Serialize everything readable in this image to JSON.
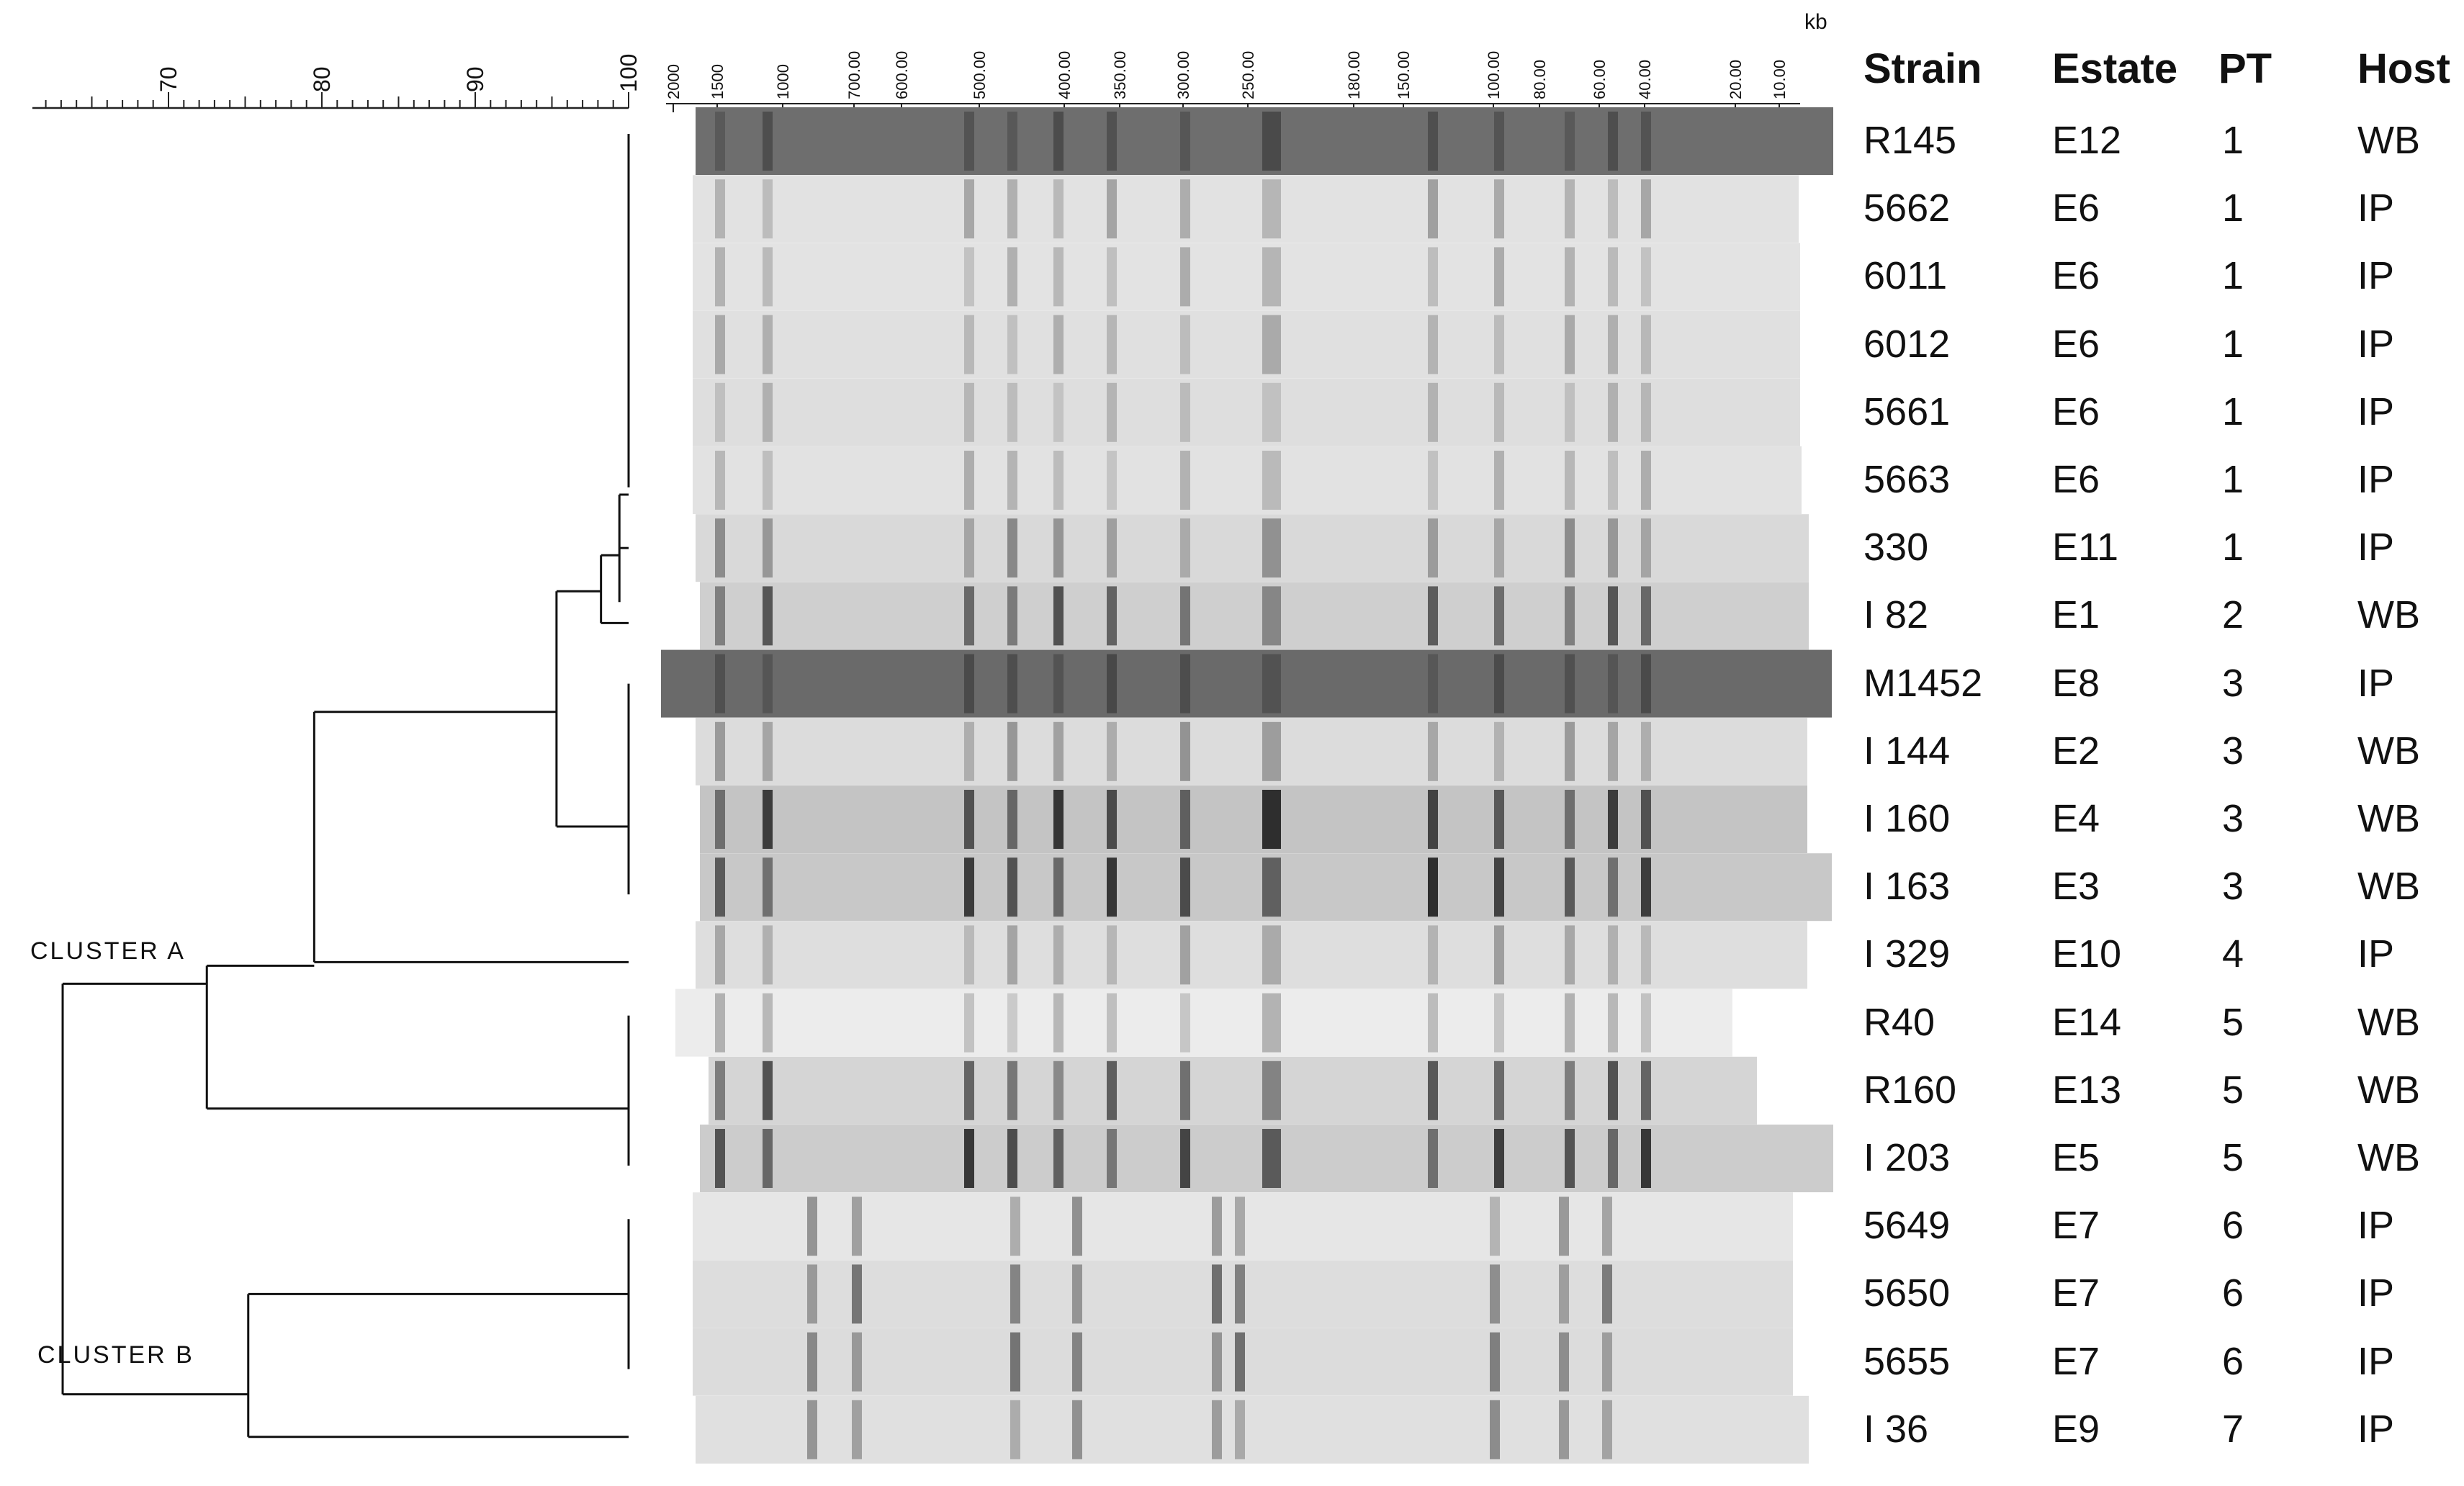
{
  "scale": {
    "ticks": [
      "70",
      "80",
      "90",
      "100"
    ],
    "tick_values": [
      70,
      80,
      90,
      100
    ]
  },
  "markers": {
    "unit": "kb",
    "labels": [
      "2000",
      "1500",
      "1000",
      "700.00",
      "600.00",
      "500.00",
      "400.00",
      "350.00",
      "300.00",
      "250.00",
      "180.00",
      "150.00",
      "100.00",
      "80.00",
      "60.00",
      "40.00",
      "20.00",
      "10.00"
    ]
  },
  "table": {
    "headers": {
      "strain": "Strain",
      "estate": "Estate",
      "pt": "PT",
      "host": "Host"
    },
    "rows": [
      {
        "strain": "R145",
        "estate": "E12",
        "pt": "1",
        "host": "WB"
      },
      {
        "strain": "5662",
        "estate": "E6",
        "pt": "1",
        "host": "IP"
      },
      {
        "strain": "6011",
        "estate": "E6",
        "pt": "1",
        "host": "IP"
      },
      {
        "strain": "6012",
        "estate": "E6",
        "pt": "1",
        "host": "IP"
      },
      {
        "strain": "5661",
        "estate": "E6",
        "pt": "1",
        "host": "IP"
      },
      {
        "strain": "5663",
        "estate": "E6",
        "pt": "1",
        "host": "IP"
      },
      {
        "strain": "330",
        "estate": "E11",
        "pt": "1",
        "host": "IP"
      },
      {
        "strain": "I 82",
        "estate": "E1",
        "pt": "2",
        "host": "WB"
      },
      {
        "strain": "M1452",
        "estate": "E8",
        "pt": "3",
        "host": "IP"
      },
      {
        "strain": "I 144",
        "estate": "E2",
        "pt": "3",
        "host": "WB"
      },
      {
        "strain": "I 160",
        "estate": "E4",
        "pt": "3",
        "host": "WB"
      },
      {
        "strain": "I 163",
        "estate": "E3",
        "pt": "3",
        "host": "WB"
      },
      {
        "strain": "I 329",
        "estate": "E10",
        "pt": "4",
        "host": "IP"
      },
      {
        "strain": "R40",
        "estate": "E14",
        "pt": "5",
        "host": "WB"
      },
      {
        "strain": "R160",
        "estate": "E13",
        "pt": "5",
        "host": "WB"
      },
      {
        "strain": "I 203",
        "estate": "E5",
        "pt": "5",
        "host": "WB"
      },
      {
        "strain": "5649",
        "estate": "E7",
        "pt": "6",
        "host": "IP"
      },
      {
        "strain": "5650",
        "estate": "E7",
        "pt": "6",
        "host": "IP"
      },
      {
        "strain": "5655",
        "estate": "E7",
        "pt": "6",
        "host": "IP"
      },
      {
        "strain": "I 36",
        "estate": "E9",
        "pt": "7",
        "host": "IP"
      }
    ]
  },
  "clusters": [
    {
      "label": "CLUSTER A",
      "similarity": 63
    },
    {
      "label": "CLUSTER B",
      "similarity": 63
    }
  ],
  "dendrogram_nodes": [
    {
      "similarity": 100,
      "rows": [
        0,
        1,
        2,
        3,
        4,
        5
      ]
    },
    {
      "similarity": 100,
      "rows": [
        8,
        9,
        10,
        11
      ]
    },
    {
      "similarity": 100,
      "rows": [
        13,
        14,
        15
      ]
    },
    {
      "similarity": 100,
      "rows": [
        16,
        17,
        18
      ]
    },
    {
      "similarity": 99,
      "children": [
        "100:0-5",
        "row:6"
      ]
    },
    {
      "similarity": 97,
      "children": [
        "99",
        "row:7"
      ]
    },
    {
      "similarity": 96,
      "children": [
        "97",
        "100:8-11"
      ]
    },
    {
      "similarity": 79,
      "children": [
        "96",
        "row:12"
      ]
    },
    {
      "similarity": 72,
      "children": [
        "79",
        "100:13-15"
      ]
    },
    {
      "similarity": 75,
      "children": [
        "100:16-18",
        "row:19"
      ]
    },
    {
      "similarity": 63,
      "children": [
        "72",
        "75"
      ]
    }
  ],
  "gel_lanes": [
    {
      "bg": "#6e6e6e",
      "intensity": 0.55
    },
    {
      "bg": "#e2e2e2",
      "intensity": 0.35
    },
    {
      "bg": "#e3e3e3",
      "intensity": 0.3
    },
    {
      "bg": "#e0e0e0",
      "intensity": 0.3
    },
    {
      "bg": "#dedede",
      "intensity": 0.25
    },
    {
      "bg": "#e2e2e2",
      "intensity": 0.28
    },
    {
      "bg": "#d9d9d9",
      "intensity": 0.45
    },
    {
      "bg": "#cfcfcf",
      "intensity": 0.75
    },
    {
      "bg": "#6a6a6a",
      "intensity": 0.55
    },
    {
      "bg": "#dcdcdc",
      "intensity": 0.4
    },
    {
      "bg": "#c4c4c4",
      "intensity": 0.95
    },
    {
      "bg": "#c8c8c8",
      "intensity": 0.95
    },
    {
      "bg": "#dedede",
      "intensity": 0.35
    },
    {
      "bg": "#ececec",
      "intensity": 0.3
    },
    {
      "bg": "#d5d5d5",
      "intensity": 0.75
    },
    {
      "bg": "#cccccc",
      "intensity": 0.9
    },
    {
      "bg": "#e6e6e6",
      "intensity": 0.45
    },
    {
      "bg": "#dddddd",
      "intensity": 0.6
    },
    {
      "bg": "#dcdcdc",
      "intensity": 0.6
    },
    {
      "bg": "#e0e0e0",
      "intensity": 0.45
    }
  ]
}
